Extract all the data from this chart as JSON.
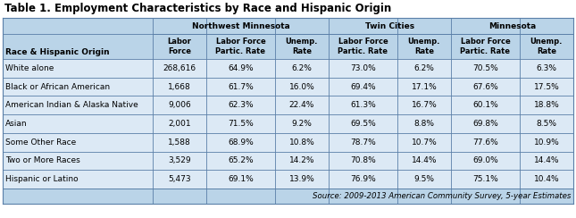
{
  "title": "Table 1. Employment Characteristics by Race and Hispanic Origin",
  "source": "Source: 2009-2013 American Community Survey, 5-year Estimates",
  "header_row2_col0": "Race & Hispanic Origin",
  "region_headers": [
    "Northwest Minnesota",
    "Twin Cities",
    "Minnesota"
  ],
  "sub_headers": [
    "Labor\nForce",
    "Labor Force\nPartic. Rate",
    "Unemp.\nRate",
    "Labor Force\nPartic. Rate",
    "Unemp.\nRate",
    "Labor Force\nPartic. Rate",
    "Unemp.\nRate"
  ],
  "rows": [
    [
      "White alone",
      "268,616",
      "64.9%",
      "6.2%",
      "73.0%",
      "6.2%",
      "70.5%",
      "6.3%"
    ],
    [
      "Black or African American",
      "1,668",
      "61.7%",
      "16.0%",
      "69.4%",
      "17.1%",
      "67.6%",
      "17.5%"
    ],
    [
      "American Indian & Alaska Native",
      "9,006",
      "62.3%",
      "22.4%",
      "61.3%",
      "16.7%",
      "60.1%",
      "18.8%"
    ],
    [
      "Asian",
      "2,001",
      "71.5%",
      "9.2%",
      "69.5%",
      "8.8%",
      "69.8%",
      "8.5%"
    ],
    [
      "Some Other Race",
      "1,588",
      "68.9%",
      "10.8%",
      "78.7%",
      "10.7%",
      "77.6%",
      "10.9%"
    ],
    [
      "Two or More Races",
      "3,529",
      "65.2%",
      "14.2%",
      "70.8%",
      "14.4%",
      "69.0%",
      "14.4%"
    ],
    [
      "Hispanic or Latino",
      "5,473",
      "69.1%",
      "13.9%",
      "76.9%",
      "9.5%",
      "75.1%",
      "10.4%"
    ]
  ],
  "header_bg": "#bad4e8",
  "row_bg": "#dce9f5",
  "border_color": "#5a7fa8",
  "title_fontsize": 8.5,
  "header_fontsize": 6.5,
  "cell_fontsize": 6.5,
  "source_fontsize": 6.2,
  "fig_width": 6.45,
  "fig_height": 2.44,
  "dpi": 100
}
